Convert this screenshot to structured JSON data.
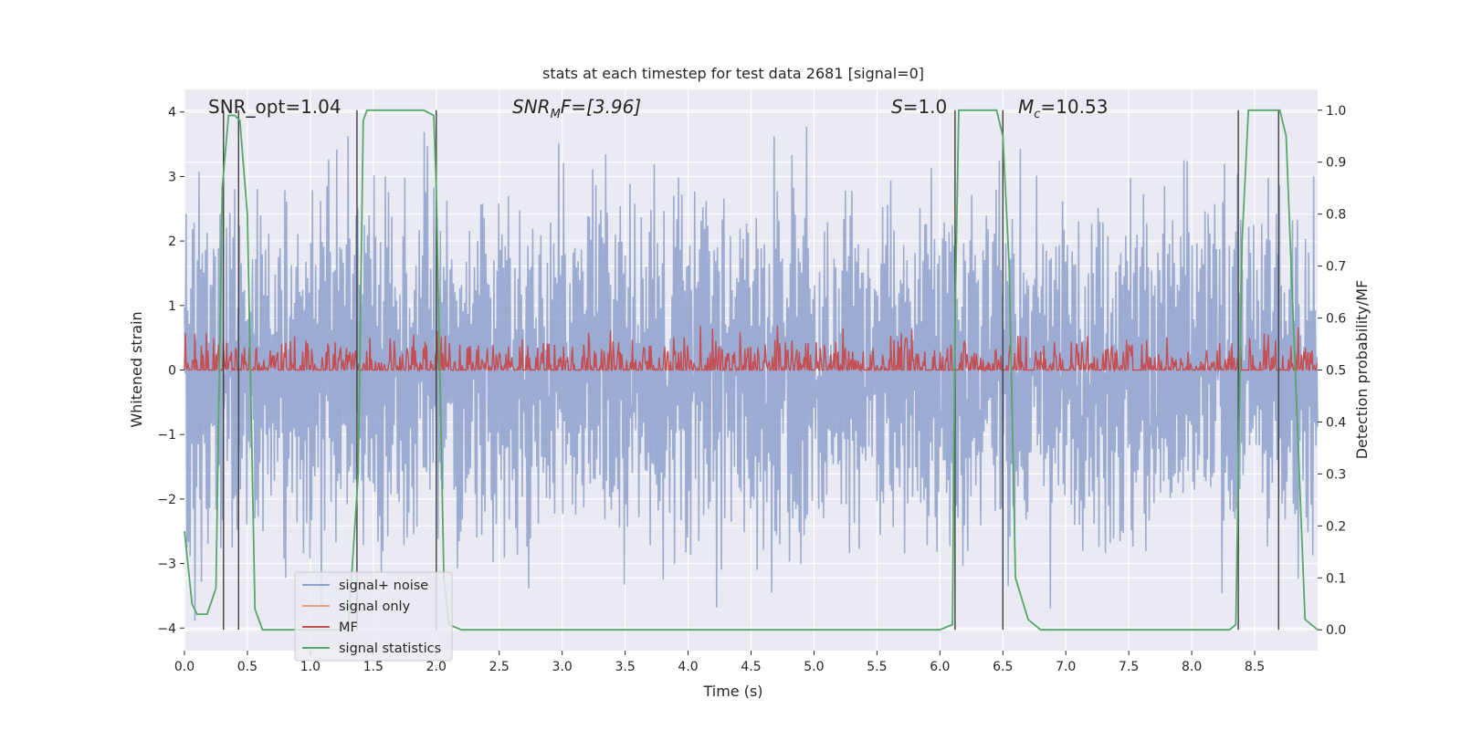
{
  "chart_data": {
    "type": "line",
    "title": "stats at each timestep for test data 2681 [signal=0]",
    "xlabel": "Time (s)",
    "ylabel_left": "Whitened strain",
    "ylabel_right": "Detection probability/MF",
    "xlim": [
      0,
      9.0
    ],
    "ylim_left": [
      -4.35,
      4.35
    ],
    "ylim_right": [
      -0.04,
      1.04
    ],
    "xticks": [
      "0.0",
      "0.5",
      "1.0",
      "1.5",
      "2.0",
      "2.5",
      "3.0",
      "3.5",
      "4.0",
      "4.5",
      "5.0",
      "5.5",
      "6.0",
      "6.5",
      "7.0",
      "7.5",
      "8.0",
      "8.5"
    ],
    "xtick_values": [
      0,
      0.5,
      1,
      1.5,
      2,
      2.5,
      3,
      3.5,
      4,
      4.5,
      5,
      5.5,
      6,
      6.5,
      7,
      7.5,
      8,
      8.5
    ],
    "yticks_left": [
      "4",
      "3",
      "2",
      "1",
      "0",
      "−1",
      "−2",
      "−3",
      "−4"
    ],
    "ytick_values_left": [
      4,
      3,
      2,
      1,
      0,
      -1,
      -2,
      -3,
      -4
    ],
    "yticks_right": [
      "1.0",
      "0.9",
      "0.8",
      "0.7",
      "0.6",
      "0.5",
      "0.4",
      "0.3",
      "0.2",
      "0.1",
      "0.0"
    ],
    "ytick_values_right": [
      1.0,
      0.9,
      0.8,
      0.7,
      0.6,
      0.5,
      0.4,
      0.3,
      0.2,
      0.1,
      0.0
    ],
    "annotations": {
      "snr_opt": "SNR_opt=1.04",
      "snr_mf": "SNR",
      "snr_mf_sub": "M",
      "snr_mf_rest": "F=[3.96]",
      "s_italic": "S",
      "s_value": "=1.0",
      "mc_italic": "M",
      "mc_sub": "c",
      "mc_value": "=10.53"
    },
    "legend": {
      "placement": "lower-left",
      "entries": [
        "signal+ noise",
        "signal only",
        "MF",
        "signal statistics"
      ]
    },
    "series": [
      {
        "name": "signal+ noise",
        "color": "#8da0cb",
        "axis": "left",
        "kind": "noise",
        "amplitude": 3.9,
        "samples": 1400
      },
      {
        "name": "signal only",
        "color": "#e9a080",
        "axis": "left",
        "values": []
      },
      {
        "name": "MF",
        "color": "#c44e52",
        "axis": "right",
        "kind": "noise",
        "baseline": 0.5,
        "amplitude": 0.12,
        "samples": 1400
      },
      {
        "name": "signal statistics",
        "color": "#55a868",
        "axis": "right",
        "x": [
          0.0,
          0.06,
          0.1,
          0.18,
          0.25,
          0.3,
          0.35,
          0.4,
          0.44,
          0.5,
          0.56,
          0.62,
          0.7,
          1.0,
          1.3,
          1.38,
          1.42,
          1.45,
          1.5,
          1.6,
          1.9,
          1.98,
          2.0,
          2.06,
          2.1,
          2.2,
          3.0,
          4.0,
          5.0,
          6.0,
          6.1,
          6.12,
          6.15,
          6.2,
          6.3,
          6.45,
          6.5,
          6.55,
          6.6,
          6.7,
          6.8,
          6.9,
          7.0,
          8.0,
          8.3,
          8.35,
          8.4,
          8.45,
          8.5,
          8.7,
          8.75,
          8.9,
          9.0
        ],
        "y": [
          0.19,
          0.05,
          0.03,
          0.03,
          0.08,
          0.85,
          0.99,
          0.99,
          0.98,
          0.8,
          0.04,
          0.0,
          0.0,
          0.0,
          0.0,
          0.3,
          0.98,
          1.0,
          1.0,
          1.0,
          1.0,
          0.99,
          0.85,
          0.1,
          0.01,
          0.0,
          0.0,
          0.0,
          0.0,
          0.0,
          0.01,
          0.6,
          1.0,
          1.0,
          1.0,
          1.0,
          0.95,
          0.7,
          0.1,
          0.02,
          0.0,
          0.0,
          0.0,
          0.0,
          0.0,
          0.01,
          0.75,
          1.0,
          1.0,
          1.0,
          0.95,
          0.02,
          0.0
        ]
      }
    ],
    "vertical_lines": [
      0.31,
      0.43,
      1.37,
      2.0,
      6.12,
      6.5,
      8.37,
      8.69
    ]
  },
  "colors": {
    "plot_bg": "#eaeaf2",
    "grid": "#ffffff",
    "noise": "#8da0cb",
    "signal_only": "#e9a080",
    "mf": "#c44e52",
    "stats": "#55a868",
    "vline": "#404040"
  }
}
